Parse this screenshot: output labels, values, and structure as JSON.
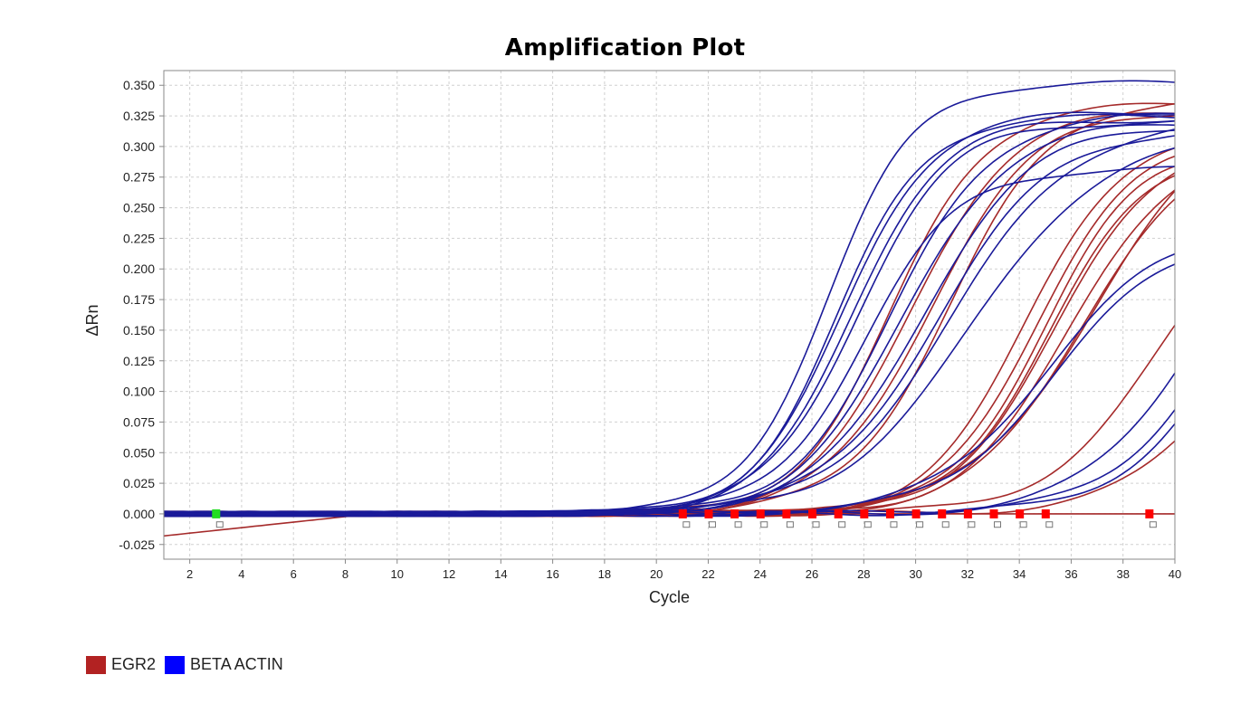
{
  "chart_data": {
    "type": "line",
    "title": "Amplification Plot",
    "xlabel": "Cycle",
    "ylabel": "ΔRn",
    "xlim": [
      1,
      40
    ],
    "ylim": [
      -0.037,
      0.362
    ],
    "x_ticks": [
      2,
      4,
      6,
      8,
      10,
      12,
      14,
      16,
      18,
      20,
      22,
      24,
      26,
      28,
      30,
      32,
      34,
      36,
      38,
      40
    ],
    "y_ticks": [
      -0.025,
      0,
      0.025,
      0.05,
      0.075,
      0.1,
      0.125,
      0.15,
      0.175,
      0.2,
      0.225,
      0.25,
      0.275,
      0.3,
      0.325,
      0.35
    ],
    "y_tick_labels": [
      "-0.025",
      "0.000",
      "0.025",
      "0.050",
      "0.075",
      "0.100",
      "0.125",
      "0.150",
      "0.175",
      "0.200",
      "0.225",
      "0.250",
      "0.275",
      "0.300",
      "0.325",
      "0.350"
    ],
    "grid": true,
    "legend_position": "bottom-left",
    "colors": {
      "EGR2": "#b22222",
      "BETA ACTIN": "#0000ff"
    },
    "series": [
      {
        "name": "EGR2",
        "color": "#a52a2a",
        "curves": [
          {
            "ct": 29.1,
            "plateau": 0.335,
            "k": 0.55,
            "base": 0.0
          },
          {
            "ct": 29.8,
            "plateau": 0.33,
            "k": 0.52,
            "base": 0.0
          },
          {
            "ct": 30.5,
            "plateau": 0.33,
            "k": 0.5,
            "base": 0.0
          },
          {
            "ct": 31.3,
            "plateau": 0.34,
            "k": 0.5,
            "base": 0.0
          },
          {
            "ct": 34.2,
            "plateau": 0.31,
            "k": 0.55,
            "base": 0.0
          },
          {
            "ct": 34.6,
            "plateau": 0.305,
            "k": 0.55,
            "base": 0.0
          },
          {
            "ct": 34.9,
            "plateau": 0.3,
            "k": 0.55,
            "base": 0.0
          },
          {
            "ct": 35.2,
            "plateau": 0.3,
            "k": 0.52,
            "base": 0.0
          },
          {
            "ct": 35.5,
            "plateau": 0.31,
            "k": 0.5,
            "base": 0.0
          },
          {
            "ct": 35.9,
            "plateau": 0.3,
            "k": 0.5,
            "base": 0.0
          },
          {
            "ct": 36.3,
            "plateau": 0.3,
            "k": 0.48,
            "base": 0.0
          },
          {
            "ct": 36.8,
            "plateau": 0.33,
            "k": 0.42,
            "base": 0.0
          },
          {
            "ct": 39.6,
            "plateau": 0.28,
            "k": 0.45,
            "base": 0.0
          },
          {
            "ct": 41.7,
            "plateau": 0.2,
            "k": 0.5,
            "base": 0.0
          },
          {
            "ct": 0,
            "plateau": 0.0,
            "k": 0.5,
            "base": -0.018
          }
        ]
      },
      {
        "name": "BETA ACTIN",
        "color": "#1a1a99",
        "curves": [
          {
            "ct": 26.6,
            "plateau": 0.352,
            "k": 0.6,
            "base": 0.0
          },
          {
            "ct": 27.0,
            "plateau": 0.325,
            "k": 0.6,
            "base": 0.0
          },
          {
            "ct": 27.2,
            "plateau": 0.328,
            "k": 0.58,
            "base": 0.0
          },
          {
            "ct": 27.5,
            "plateau": 0.322,
            "k": 0.58,
            "base": 0.0
          },
          {
            "ct": 27.7,
            "plateau": 0.32,
            "k": 0.56,
            "base": 0.0
          },
          {
            "ct": 28.0,
            "plateau": 0.282,
            "k": 0.55,
            "base": 0.0
          },
          {
            "ct": 29.1,
            "plateau": 0.327,
            "k": 0.52,
            "base": 0.0
          },
          {
            "ct": 29.5,
            "plateau": 0.32,
            "k": 0.5,
            "base": 0.0
          },
          {
            "ct": 30.2,
            "plateau": 0.318,
            "k": 0.48,
            "base": 0.0
          },
          {
            "ct": 30.8,
            "plateau": 0.315,
            "k": 0.45,
            "base": 0.0
          },
          {
            "ct": 31.4,
            "plateau": 0.322,
            "k": 0.42,
            "base": 0.0
          },
          {
            "ct": 32.2,
            "plateau": 0.31,
            "k": 0.4,
            "base": 0.0
          },
          {
            "ct": 35.0,
            "plateau": 0.233,
            "k": 0.45,
            "base": 0.0
          },
          {
            "ct": 35.4,
            "plateau": 0.23,
            "k": 0.45,
            "base": 0.0
          },
          {
            "ct": 41.0,
            "plateau": 0.3,
            "k": 0.45,
            "base": 0.0
          },
          {
            "ct": 42.0,
            "plateau": 0.3,
            "k": 0.45,
            "base": 0.0
          },
          {
            "ct": 42.5,
            "plateau": 0.3,
            "k": 0.45,
            "base": 0.0
          }
        ]
      }
    ],
    "threshold_markers": [
      {
        "x": 3,
        "color": "#22dd22"
      },
      {
        "x": 21,
        "color": "#ff0000"
      },
      {
        "x": 22,
        "color": "#ff0000"
      },
      {
        "x": 23,
        "color": "#ff0000"
      },
      {
        "x": 24,
        "color": "#ff0000"
      },
      {
        "x": 25,
        "color": "#ff0000"
      },
      {
        "x": 26,
        "color": "#ff0000"
      },
      {
        "x": 27,
        "color": "#ff0000"
      },
      {
        "x": 28,
        "color": "#ff0000"
      },
      {
        "x": 29,
        "color": "#ff0000"
      },
      {
        "x": 30,
        "color": "#ff0000"
      },
      {
        "x": 31,
        "color": "#ff0000"
      },
      {
        "x": 32,
        "color": "#ff0000"
      },
      {
        "x": 33,
        "color": "#ff0000"
      },
      {
        "x": 34,
        "color": "#ff0000"
      },
      {
        "x": 35,
        "color": "#ff0000"
      },
      {
        "x": 39,
        "color": "#ff0000"
      }
    ]
  },
  "legend": [
    {
      "label": "EGR2",
      "color": "#b22222"
    },
    {
      "label": "BETA ACTIN",
      "color": "#0000ff"
    }
  ]
}
